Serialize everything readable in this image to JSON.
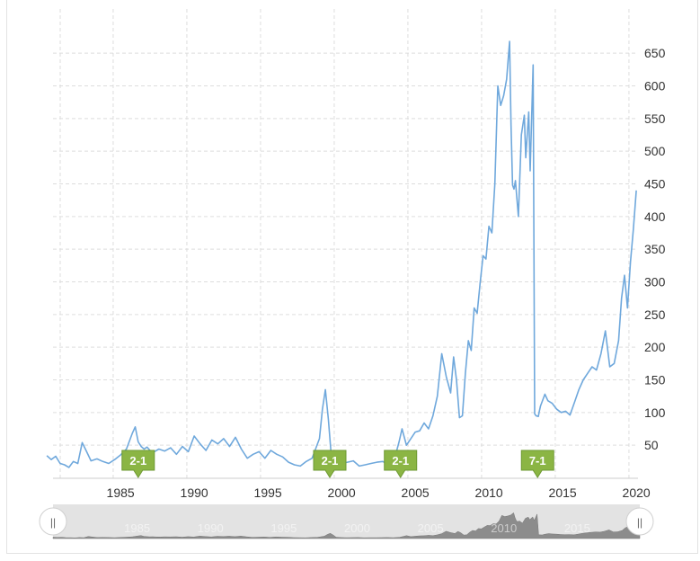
{
  "chart_data": {
    "type": "line",
    "title": "",
    "xlabel": "",
    "ylabel": "",
    "xlim": [
      1980.0,
      2020.0
    ],
    "ylim": [
      0,
      700
    ],
    "grid": true,
    "y_ticks": [
      50,
      100,
      150,
      200,
      250,
      300,
      350,
      400,
      450,
      500,
      550,
      600,
      650
    ],
    "x_ticks": [
      1985,
      1990,
      1995,
      2000,
      2005,
      2010,
      2015,
      2020
    ],
    "line_color": "#6fa8dc",
    "series": [
      {
        "x": [
          1980.0,
          1980.3,
          1980.6,
          1980.9,
          1981.2,
          1981.5,
          1981.8,
          1982.1,
          1982.4,
          1982.7,
          1983.0,
          1983.4,
          1983.8,
          1984.2,
          1984.6,
          1985.0,
          1985.4,
          1985.8,
          1986.0,
          1986.2,
          1986.4,
          1986.6,
          1986.8,
          1987.0,
          1987.3,
          1987.6,
          1988.0,
          1988.4,
          1988.8,
          1989.2,
          1989.6,
          1990.0,
          1990.4,
          1990.8,
          1991.2,
          1991.6,
          1992.0,
          1992.4,
          1992.8,
          1993.2,
          1993.6,
          1994.0,
          1994.4,
          1994.8,
          1995.2,
          1995.6,
          1996.0,
          1996.4,
          1996.8,
          1997.2,
          1997.6,
          1998.0,
          1998.2,
          1998.5,
          1998.7,
          1998.9,
          1999.1,
          1999.3,
          1999.6,
          2000.0,
          2000.4,
          2000.8,
          2001.2,
          2001.6,
          2002.0,
          2002.4,
          2002.8,
          2003.2,
          2003.6,
          2003.9,
          2004.1,
          2004.4,
          2004.7,
          2005.0,
          2005.3,
          2005.6,
          2005.9,
          2006.2,
          2006.5,
          2006.8,
          2007.1,
          2007.4,
          2007.6,
          2007.8,
          2008.0,
          2008.2,
          2008.4,
          2008.6,
          2008.8,
          2009.0,
          2009.2,
          2009.4,
          2009.6,
          2009.8,
          2010.0,
          2010.2,
          2010.4,
          2010.6,
          2010.8,
          2011.0,
          2011.2,
          2011.4,
          2011.5,
          2011.6,
          2011.7,
          2011.8,
          2012.0,
          2012.2,
          2012.4,
          2012.5,
          2012.7,
          2012.8,
          2013.0,
          2013.1,
          2013.2,
          2013.35,
          2013.4,
          2013.5,
          2013.8,
          2014.0,
          2014.3,
          2014.6,
          2014.9,
          2015.2,
          2015.5,
          2015.8,
          2016.1,
          2016.4,
          2016.7,
          2017.0,
          2017.3,
          2017.6,
          2017.9,
          2018.2,
          2018.5,
          2018.8,
          2019.0,
          2019.2,
          2019.4,
          2019.6,
          2019.8,
          2020.0
        ],
        "values": [
          34,
          28,
          33,
          22,
          20,
          16,
          25,
          22,
          54,
          40,
          26,
          29,
          25,
          22,
          28,
          35,
          44,
          68,
          78,
          55,
          48,
          44,
          47,
          42,
          40,
          44,
          41,
          46,
          36,
          48,
          40,
          64,
          52,
          42,
          58,
          52,
          60,
          48,
          62,
          44,
          30,
          36,
          40,
          30,
          42,
          36,
          32,
          24,
          20,
          18,
          25,
          30,
          42,
          60,
          105,
          135,
          90,
          35,
          25,
          22,
          24,
          26,
          18,
          20,
          22,
          24,
          25,
          20,
          30,
          55,
          75,
          50,
          60,
          70,
          72,
          84,
          75,
          95,
          125,
          190,
          155,
          130,
          185,
          150,
          92,
          95,
          160,
          210,
          195,
          260,
          252,
          298,
          340,
          335,
          385,
          375,
          450,
          600,
          570,
          585,
          610,
          668,
          540,
          448,
          442,
          455,
          400,
          525,
          555,
          490,
          560,
          470,
          632,
          98,
          95,
          94,
          100,
          110,
          128,
          118,
          114,
          105,
          100,
          102,
          96,
          115,
          135,
          150,
          160,
          170,
          165,
          190,
          225,
          170,
          175,
          210,
          275,
          310,
          260,
          330,
          380,
          440
        ]
      }
    ],
    "splits": [
      {
        "label": "2-1",
        "x": 1986.2
      },
      {
        "label": "2-1",
        "x": 1999.2
      },
      {
        "label": "2-1",
        "x": 2004.0
      },
      {
        "label": "7-1",
        "x": 2013.3
      }
    ],
    "navigator": {
      "x_labels": [
        1985,
        1990,
        1995,
        2000,
        2005,
        2010,
        2015
      ],
      "handle_glyph": "||"
    }
  }
}
